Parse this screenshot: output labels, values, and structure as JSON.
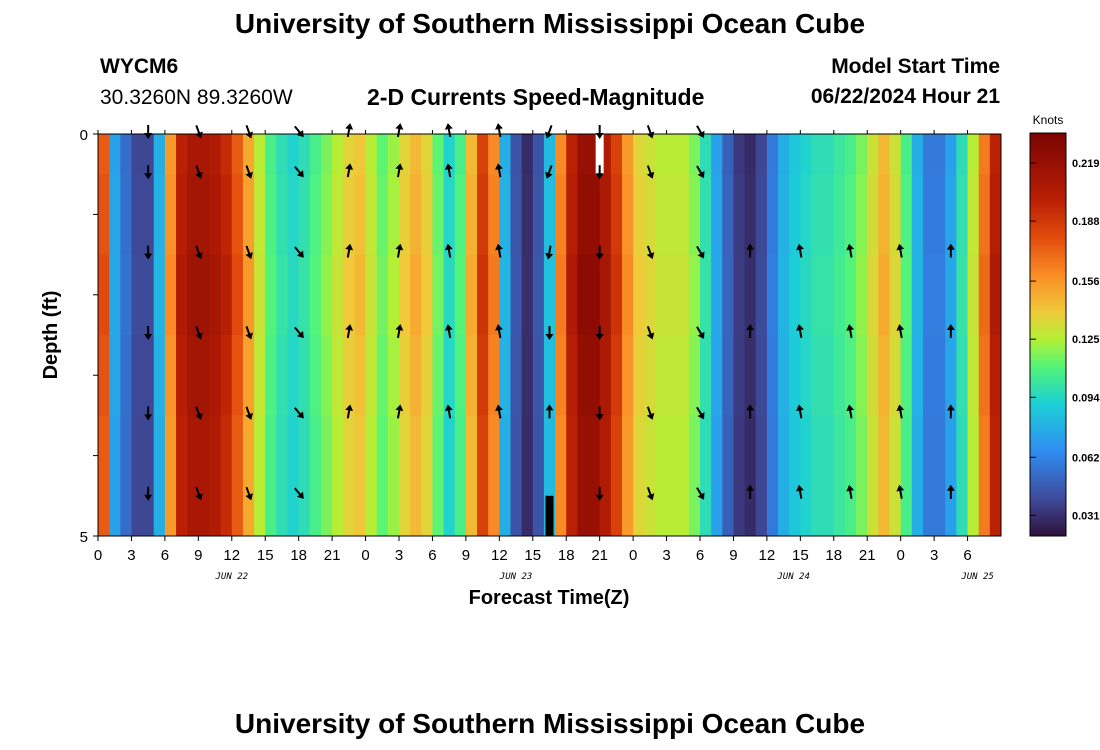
{
  "header": {
    "title": "University of Southern Mississippi Ocean Cube",
    "station_id": "WYCM6",
    "station_coords": "30.3260N  89.3260W",
    "subtitle": "2-D Currents Speed-Magnitude",
    "model_start_label": "Model Start Time",
    "model_start_value": "06/22/2024 Hour 21"
  },
  "footer": {
    "title": "University of Southern Mississippi Ocean Cube"
  },
  "chart_data": {
    "type": "heatmap",
    "title": "2-D Currents Speed-Magnitude",
    "xlabel": "Forecast Time(Z)",
    "ylabel": "Depth (ft)",
    "x_tick_labels": [
      "0",
      "3",
      "6",
      "9",
      "12",
      "15",
      "18",
      "21",
      "0",
      "3",
      "6",
      "9",
      "12",
      "15",
      "18",
      "21",
      "0",
      "3",
      "6",
      "9",
      "12",
      "15",
      "18",
      "21",
      "0",
      "3",
      "6"
    ],
    "date_labels": [
      {
        "text": "JUN 22",
        "tick_index": 4
      },
      {
        "text": "JUN 23",
        "tick_index": 12.5
      },
      {
        "text": "JUN 24",
        "tick_index": 20.8
      },
      {
        "text": "JUN 25",
        "tick_index": 26.3
      }
    ],
    "y_tick_labels": [
      "0",
      "5"
    ],
    "ylim": [
      0,
      5
    ],
    "hours_range": [
      0,
      81
    ],
    "depth_layers": 5,
    "colorbar": {
      "unit_label": "Knots",
      "range": [
        0.02,
        0.235
      ],
      "tick_labels": [
        "0.219",
        "0.188",
        "0.156",
        "0.125",
        "0.094",
        "0.062",
        "0.031"
      ],
      "tick_values": [
        0.219,
        0.188,
        0.156,
        0.125,
        0.094,
        0.062,
        0.031
      ],
      "stops": [
        {
          "v": 0.02,
          "c": "#30123b"
        },
        {
          "v": 0.04,
          "c": "#3e4a9a"
        },
        {
          "v": 0.065,
          "c": "#2f8cf2"
        },
        {
          "v": 0.09,
          "c": "#1ccfd7"
        },
        {
          "v": 0.11,
          "c": "#52f47a"
        },
        {
          "v": 0.125,
          "c": "#b3f035"
        },
        {
          "v": 0.14,
          "c": "#f1c93a"
        },
        {
          "v": 0.16,
          "c": "#fa8a25"
        },
        {
          "v": 0.18,
          "c": "#e04a0c"
        },
        {
          "v": 0.2,
          "c": "#b81e04"
        },
        {
          "v": 0.235,
          "c": "#7a0403"
        }
      ]
    },
    "speed_columns": [
      {
        "hour": 0,
        "knots": 0.18
      },
      {
        "hour": 1,
        "knots": 0.075
      },
      {
        "hour": 2,
        "knots": 0.055
      },
      {
        "hour": 3,
        "knots": 0.04
      },
      {
        "hour": 4,
        "knots": 0.04
      },
      {
        "hour": 5,
        "knots": 0.08
      },
      {
        "hour": 6,
        "knots": 0.16
      },
      {
        "hour": 7,
        "knots": 0.205
      },
      {
        "hour": 8,
        "knots": 0.215
      },
      {
        "hour": 9,
        "knots": 0.215
      },
      {
        "hour": 10,
        "knots": 0.21
      },
      {
        "hour": 11,
        "knots": 0.2
      },
      {
        "hour": 12,
        "knots": 0.18
      },
      {
        "hour": 13,
        "knots": 0.155
      },
      {
        "hour": 14,
        "knots": 0.13
      },
      {
        "hour": 15,
        "knots": 0.11
      },
      {
        "hour": 16,
        "knots": 0.1
      },
      {
        "hour": 17,
        "knots": 0.095
      },
      {
        "hour": 18,
        "knots": 0.1
      },
      {
        "hour": 19,
        "knots": 0.11
      },
      {
        "hour": 20,
        "knots": 0.12
      },
      {
        "hour": 21,
        "knots": 0.13
      },
      {
        "hour": 22,
        "knots": 0.14
      },
      {
        "hour": 23,
        "knots": 0.145
      },
      {
        "hour": 24,
        "knots": 0.13
      },
      {
        "hour": 25,
        "knots": 0.115
      },
      {
        "hour": 26,
        "knots": 0.125
      },
      {
        "hour": 27,
        "knots": 0.14
      },
      {
        "hour": 28,
        "knots": 0.15
      },
      {
        "hour": 29,
        "knots": 0.14
      },
      {
        "hour": 30,
        "knots": 0.115
      },
      {
        "hour": 31,
        "knots": 0.095
      },
      {
        "hour": 32,
        "knots": 0.11
      },
      {
        "hour": 33,
        "knots": 0.15
      },
      {
        "hour": 34,
        "knots": 0.19
      },
      {
        "hour": 35,
        "knots": 0.165
      },
      {
        "hour": 36,
        "knots": 0.08
      },
      {
        "hour": 37,
        "knots": 0.045
      },
      {
        "hour": 38,
        "knots": 0.03
      },
      {
        "hour": 39,
        "knots": 0.045
      },
      {
        "hour": 40,
        "knots": 0.085
      },
      {
        "hour": 41,
        "knots": 0.165
      },
      {
        "hour": 42,
        "knots": 0.205
      },
      {
        "hour": 43,
        "knots": 0.225
      },
      {
        "hour": 44,
        "knots": 0.225
      },
      {
        "hour": 45,
        "knots": 0.21
      },
      {
        "hour": 46,
        "knots": 0.19
      },
      {
        "hour": 47,
        "knots": 0.16
      },
      {
        "hour": 48,
        "knots": 0.14
      },
      {
        "hour": 49,
        "knots": 0.135
      },
      {
        "hour": 50,
        "knots": 0.13
      },
      {
        "hour": 51,
        "knots": 0.13
      },
      {
        "hour": 52,
        "knots": 0.13
      },
      {
        "hour": 53,
        "knots": 0.12
      },
      {
        "hour": 54,
        "knots": 0.1
      },
      {
        "hour": 55,
        "knots": 0.075
      },
      {
        "hour": 56,
        "knots": 0.05
      },
      {
        "hour": 57,
        "knots": 0.035
      },
      {
        "hour": 58,
        "knots": 0.03
      },
      {
        "hour": 59,
        "knots": 0.04
      },
      {
        "hour": 60,
        "knots": 0.06
      },
      {
        "hour": 61,
        "knots": 0.08
      },
      {
        "hour": 62,
        "knots": 0.09
      },
      {
        "hour": 63,
        "knots": 0.095
      },
      {
        "hour": 64,
        "knots": 0.1
      },
      {
        "hour": 65,
        "knots": 0.1
      },
      {
        "hour": 66,
        "knots": 0.105
      },
      {
        "hour": 67,
        "knots": 0.11
      },
      {
        "hour": 68,
        "knots": 0.12
      },
      {
        "hour": 69,
        "knots": 0.135
      },
      {
        "hour": 70,
        "knots": 0.15
      },
      {
        "hour": 71,
        "knots": 0.135
      },
      {
        "hour": 72,
        "knots": 0.11
      },
      {
        "hour": 73,
        "knots": 0.08
      },
      {
        "hour": 74,
        "knots": 0.06
      },
      {
        "hour": 75,
        "knots": 0.06
      },
      {
        "hour": 76,
        "knots": 0.075
      },
      {
        "hour": 77,
        "knots": 0.1
      },
      {
        "hour": 78,
        "knots": 0.13
      },
      {
        "hour": 79,
        "knots": 0.17
      },
      {
        "hour": 80,
        "knots": 0.205
      }
    ],
    "missing_cells": [
      {
        "hour": 45,
        "depth_from": 0,
        "depth_to": 0.5,
        "fill": "white"
      },
      {
        "hour": 40.5,
        "depth_from": 4.5,
        "depth_to": 5,
        "fill": "black"
      }
    ],
    "vector_columns": [
      {
        "hour": 4.5,
        "dir": [
          180,
          180,
          180,
          180,
          180,
          180
        ]
      },
      {
        "hour": 9,
        "dir": [
          160,
          160,
          160,
          160,
          160,
          160
        ]
      },
      {
        "hour": 13.5,
        "dir": [
          160,
          160,
          160,
          160,
          160,
          160
        ]
      },
      {
        "hour": 18,
        "dir": [
          140,
          140,
          140,
          140,
          140,
          140
        ]
      },
      {
        "hour": 22.5,
        "dir": [
          null,
          10,
          10,
          10,
          10,
          10
        ]
      },
      {
        "hour": 27,
        "dir": [
          null,
          10,
          10,
          10,
          10,
          10
        ]
      },
      {
        "hour": 31.5,
        "dir": [
          null,
          350,
          350,
          350,
          350,
          350
        ]
      },
      {
        "hour": 36,
        "dir": [
          null,
          350,
          350,
          350,
          350,
          350
        ]
      },
      {
        "hour": 40.5,
        "dir": [
          null,
          0,
          180,
          190,
          200,
          200
        ]
      },
      {
        "hour": 45,
        "dir": [
          180,
          180,
          180,
          180,
          180,
          180
        ]
      },
      {
        "hour": 49.5,
        "dir": [
          160,
          160,
          160,
          160,
          160,
          160
        ]
      },
      {
        "hour": 54,
        "dir": [
          150,
          150,
          150,
          150,
          150,
          150
        ]
      },
      {
        "hour": 58.5,
        "dir": [
          0,
          0,
          0,
          0,
          null,
          null
        ]
      },
      {
        "hour": 63,
        "dir": [
          350,
          350,
          350,
          350,
          null,
          null
        ]
      },
      {
        "hour": 67.5,
        "dir": [
          350,
          350,
          350,
          350,
          null,
          null
        ]
      },
      {
        "hour": 72,
        "dir": [
          350,
          350,
          350,
          350,
          null,
          null
        ]
      },
      {
        "hour": 76.5,
        "dir": [
          0,
          0,
          0,
          0,
          null,
          null
        ]
      }
    ],
    "vector_depths": [
      4.5,
      3.5,
      2.5,
      1.5,
      0.5,
      0.0
    ]
  }
}
